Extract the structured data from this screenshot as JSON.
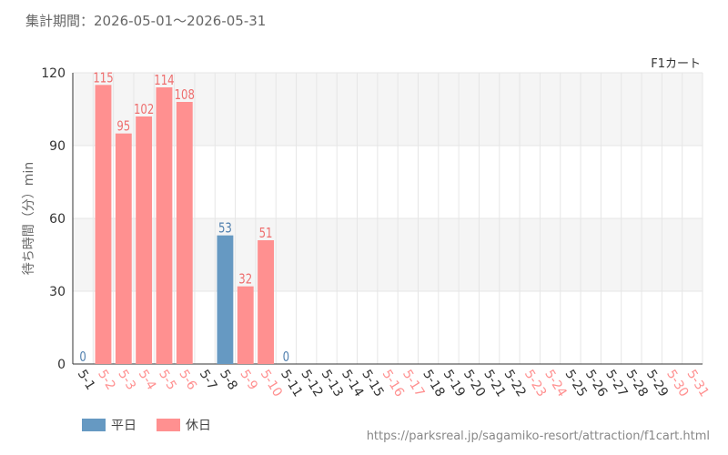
{
  "period": "集計期間：2026-05-01～2026-05-31",
  "url": "https://parksreal.jp/sagamiko-resort/attraction/f1cart.html",
  "colors": {
    "weekday": "#6699c2",
    "holiday": "#ff9090",
    "weekday_label": "#4f7fae",
    "holiday_label": "#ee6e6e",
    "axis_text": "#333333",
    "grid": "#e6e6e6",
    "band": "#f5f5f5"
  },
  "chart_data": {
    "type": "bar",
    "series_title": "F1カート",
    "ylabel": "待ち時間（分）min",
    "ylim": [
      0,
      120
    ],
    "yticks": [
      0,
      30,
      60,
      90,
      120
    ],
    "grid": true,
    "legend_position": "bottom-left",
    "legend": [
      {
        "key": "weekday",
        "label": "平日"
      },
      {
        "key": "holiday",
        "label": "休日"
      }
    ],
    "categories": [
      "5-1",
      "5-2",
      "5-3",
      "5-4",
      "5-5",
      "5-6",
      "5-7",
      "5-8",
      "5-9",
      "5-10",
      "5-11",
      "5-12",
      "5-13",
      "5-14",
      "5-15",
      "5-16",
      "5-17",
      "5-18",
      "5-19",
      "5-20",
      "5-21",
      "5-22",
      "5-23",
      "5-24",
      "5-25",
      "5-26",
      "5-27",
      "5-28",
      "5-29",
      "5-30",
      "5-31"
    ],
    "day_type": [
      "weekday",
      "holiday",
      "holiday",
      "holiday",
      "holiday",
      "holiday",
      "weekday",
      "weekday",
      "holiday",
      "holiday",
      "weekday",
      "weekday",
      "weekday",
      "weekday",
      "weekday",
      "holiday",
      "holiday",
      "weekday",
      "weekday",
      "weekday",
      "weekday",
      "weekday",
      "holiday",
      "holiday",
      "weekday",
      "weekday",
      "weekday",
      "weekday",
      "weekday",
      "holiday",
      "holiday"
    ],
    "values": [
      0,
      115,
      95,
      102,
      114,
      108,
      null,
      53,
      32,
      51,
      0,
      null,
      null,
      null,
      null,
      null,
      null,
      null,
      null,
      null,
      null,
      null,
      null,
      null,
      null,
      null,
      null,
      null,
      null,
      null,
      null
    ]
  }
}
